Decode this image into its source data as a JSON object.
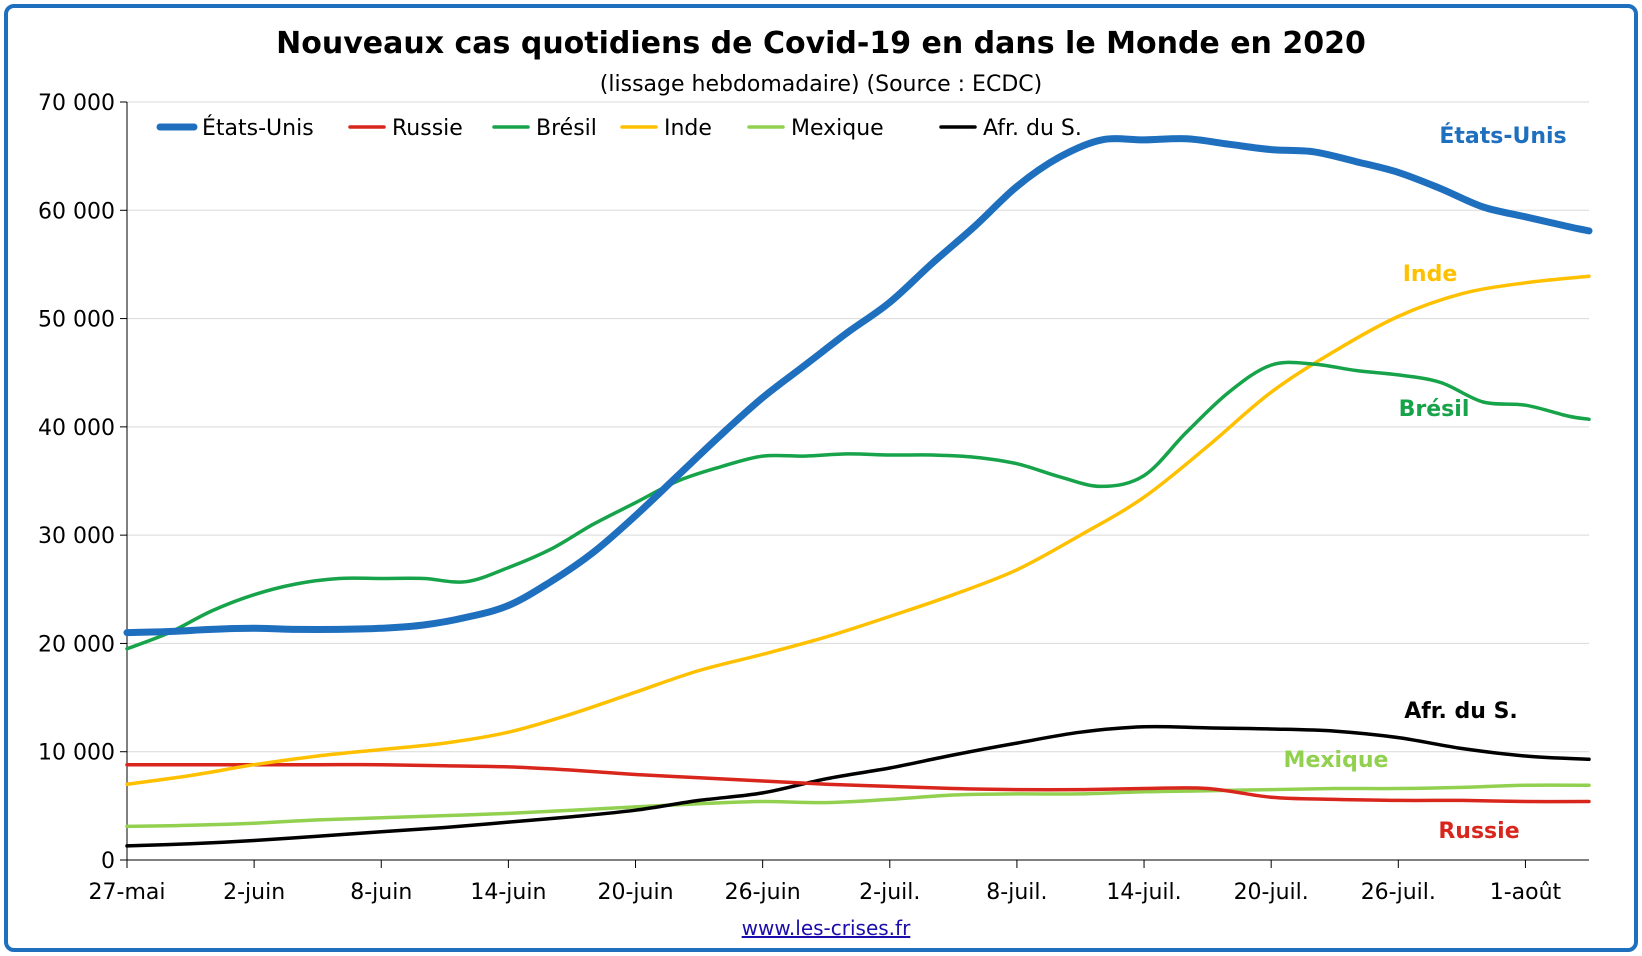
{
  "chart_data": {
    "type": "line",
    "title": "Nouveaux cas quotidiens de Covid-19 en dans le Monde en 2020",
    "subtitle": "(lissage hebdomadaire) (Source : ECDC)",
    "source_link": "www.les-crises.fr",
    "xlabel": "",
    "ylabel": "",
    "ylim": [
      0,
      70000
    ],
    "yticks": [
      0,
      10000,
      20000,
      30000,
      40000,
      50000,
      60000,
      70000
    ],
    "ytick_labels": [
      "0",
      "10 000",
      "20 000",
      "30 000",
      "40 000",
      "50 000",
      "60 000",
      "70 000"
    ],
    "xlim_days": [
      0,
      69
    ],
    "xtick_days": [
      0,
      6,
      12,
      18,
      24,
      30,
      36,
      42,
      48,
      54,
      60,
      66
    ],
    "xtick_labels": [
      "27-mai",
      "2-juin",
      "8-juin",
      "14-juin",
      "20-juin",
      "26-juin",
      "2-juil.",
      "8-juil.",
      "14-juil.",
      "20-juil.",
      "26-juil.",
      "1-août"
    ],
    "grid": true,
    "legend": "top-left",
    "series": [
      {
        "name": "États-Unis",
        "color": "#1f6fbf",
        "end_label": "États-Unis",
        "x": [
          0,
          2,
          4,
          6,
          8,
          10,
          12,
          14,
          16,
          18,
          20,
          22,
          24,
          26,
          28,
          30,
          32,
          34,
          36,
          38,
          40,
          42,
          44,
          46,
          48,
          50,
          52,
          54,
          56,
          58,
          60,
          62,
          64,
          66,
          68,
          69
        ],
        "values": [
          21000,
          21100,
          21300,
          21400,
          21300,
          21300,
          21400,
          21700,
          22400,
          23500,
          25700,
          28400,
          31800,
          35500,
          39200,
          42700,
          45700,
          48700,
          51500,
          55100,
          58500,
          62200,
          64900,
          66500,
          66500,
          66600,
          66100,
          65600,
          65400,
          64500,
          63500,
          62000,
          60300,
          59400,
          58500,
          58100
        ]
      },
      {
        "name": "Russie",
        "color": "#d9261c",
        "end_label": "Russie",
        "x": [
          0,
          3,
          6,
          9,
          12,
          15,
          18,
          21,
          24,
          27,
          30,
          33,
          36,
          39,
          42,
          45,
          48,
          51,
          54,
          57,
          60,
          63,
          66,
          69
        ],
        "values": [
          8800,
          8800,
          8800,
          8800,
          8800,
          8700,
          8600,
          8300,
          7900,
          7600,
          7300,
          7000,
          6800,
          6600,
          6500,
          6500,
          6600,
          6600,
          5800,
          5600,
          5500,
          5500,
          5400,
          5400
        ]
      },
      {
        "name": "Brésil",
        "color": "#16a34a",
        "end_label": "Brésil",
        "x": [
          0,
          2,
          4,
          6,
          8,
          10,
          12,
          14,
          16,
          18,
          20,
          22,
          24,
          26,
          28,
          30,
          32,
          34,
          36,
          38,
          40,
          42,
          44,
          46,
          48,
          50,
          52,
          54,
          56,
          58,
          60,
          62,
          64,
          66,
          68,
          69
        ],
        "values": [
          19500,
          21000,
          23000,
          24500,
          25500,
          26000,
          26000,
          26000,
          25700,
          27000,
          28700,
          31000,
          33000,
          35000,
          36300,
          37300,
          37300,
          37500,
          37400,
          37400,
          37200,
          36600,
          35400,
          34500,
          35500,
          39500,
          43200,
          45700,
          45800,
          45200,
          44800,
          44100,
          42300,
          42000,
          41000,
          40700
        ]
      },
      {
        "name": "Inde",
        "color": "#ffc000",
        "end_label": "Inde",
        "x": [
          0,
          3,
          6,
          9,
          12,
          15,
          18,
          21,
          24,
          27,
          30,
          33,
          36,
          39,
          42,
          45,
          48,
          51,
          54,
          57,
          60,
          63,
          66,
          69
        ],
        "values": [
          7000,
          7800,
          8800,
          9600,
          10200,
          10800,
          11800,
          13500,
          15500,
          17500,
          19000,
          20600,
          22500,
          24500,
          26800,
          30000,
          33500,
          38200,
          43200,
          47000,
          50200,
          52300,
          53300,
          53900
        ]
      },
      {
        "name": "Mexique",
        "color": "#92d050",
        "end_label": "Mexique",
        "x": [
          0,
          3,
          6,
          9,
          12,
          15,
          18,
          21,
          24,
          27,
          30,
          33,
          36,
          39,
          42,
          45,
          48,
          51,
          54,
          57,
          60,
          63,
          66,
          69
        ],
        "values": [
          3100,
          3200,
          3400,
          3700,
          3900,
          4100,
          4300,
          4600,
          4900,
          5200,
          5400,
          5300,
          5600,
          6000,
          6100,
          6100,
          6300,
          6400,
          6500,
          6600,
          6600,
          6700,
          6900,
          6900
        ]
      },
      {
        "name": "Afr. du S.",
        "color": "#000000",
        "end_label": "Afr. du S.",
        "x": [
          0,
          3,
          6,
          9,
          12,
          15,
          18,
          21,
          24,
          27,
          30,
          33,
          36,
          39,
          42,
          45,
          48,
          51,
          54,
          57,
          60,
          63,
          66,
          69
        ],
        "values": [
          1300,
          1500,
          1800,
          2200,
          2600,
          3000,
          3500,
          4000,
          4600,
          5500,
          6200,
          7500,
          8500,
          9700,
          10800,
          11800,
          12300,
          12200,
          12100,
          11900,
          11300,
          10300,
          9600,
          9300
        ]
      }
    ]
  }
}
